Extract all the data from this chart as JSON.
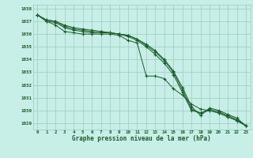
{
  "x": [
    0,
    1,
    2,
    3,
    4,
    5,
    6,
    7,
    8,
    9,
    10,
    11,
    12,
    13,
    14,
    15,
    16,
    17,
    18,
    19,
    20,
    21,
    22,
    23
  ],
  "line1": [
    1037.5,
    1037.0,
    1036.7,
    1036.2,
    1036.1,
    1036.0,
    1036.0,
    1036.0,
    1036.0,
    1035.9,
    1035.5,
    1035.3,
    1032.7,
    1032.7,
    1032.5,
    1031.7,
    1031.2,
    1030.5,
    1030.1,
    1030.0,
    1029.8,
    1029.5,
    1029.2,
    1028.8
  ],
  "line2": [
    1037.5,
    1037.0,
    1036.9,
    1036.5,
    1036.3,
    1036.2,
    1036.1,
    1036.1,
    1036.1,
    1036.0,
    1035.8,
    1035.5,
    1035.0,
    1034.4,
    1033.7,
    1032.8,
    1031.4,
    1030.0,
    1029.8,
    1030.0,
    1029.8,
    1029.5,
    1029.2,
    1028.8
  ],
  "line3": [
    1037.5,
    1037.1,
    1037.0,
    1036.6,
    1036.4,
    1036.3,
    1036.2,
    1036.2,
    1036.1,
    1036.0,
    1035.9,
    1035.6,
    1035.1,
    1034.6,
    1033.9,
    1033.0,
    1031.6,
    1030.1,
    1029.8,
    1030.1,
    1029.9,
    1029.6,
    1029.3,
    1028.8
  ],
  "line4": [
    1037.5,
    1037.1,
    1037.0,
    1036.7,
    1036.5,
    1036.4,
    1036.3,
    1036.2,
    1036.1,
    1036.0,
    1035.9,
    1035.6,
    1035.2,
    1034.7,
    1034.0,
    1033.1,
    1031.8,
    1030.3,
    1029.6,
    1030.2,
    1030.0,
    1029.7,
    1029.4,
    1028.8
  ],
  "bg_color": "#c8eee8",
  "grid_color": "#99ccbb",
  "line_color": "#1a5c2a",
  "xlabel": "Graphe pression niveau de la mer (hPa)",
  "ylim_min": 1028.5,
  "ylim_max": 1038.3,
  "yticks": [
    1029,
    1030,
    1031,
    1032,
    1033,
    1034,
    1035,
    1036,
    1037,
    1038
  ],
  "xticks": [
    0,
    1,
    2,
    3,
    4,
    5,
    6,
    7,
    8,
    9,
    10,
    11,
    12,
    13,
    14,
    15,
    16,
    17,
    18,
    19,
    20,
    21,
    22,
    23
  ]
}
